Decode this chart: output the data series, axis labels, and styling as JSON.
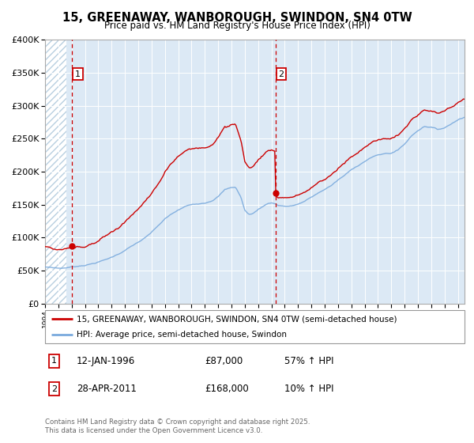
{
  "title": "15, GREENAWAY, WANBOROUGH, SWINDON, SN4 0TW",
  "subtitle": "Price paid vs. HM Land Registry's House Price Index (HPI)",
  "legend_line1": "15, GREENAWAY, WANBOROUGH, SWINDON, SN4 0TW (semi-detached house)",
  "legend_line2": "HPI: Average price, semi-detached house, Swindon",
  "footnote": "Contains HM Land Registry data © Crown copyright and database right 2025.\nThis data is licensed under the Open Government Licence v3.0.",
  "sale1_x": 1996.04,
  "sale1_y": 87000,
  "sale2_x": 2011.32,
  "sale2_y": 168000,
  "background_color": "#dce9f5",
  "red_line_color": "#cc0000",
  "blue_line_color": "#7aaadd",
  "dashed_line_color": "#cc0000",
  "grid_color": "#ffffff",
  "hatch_color": "#b8cfe0",
  "ylim_max": 400000,
  "xlim_min": 1994.0,
  "xlim_max": 2025.5,
  "yticks": [
    0,
    50000,
    100000,
    150000,
    200000,
    250000,
    300000,
    350000,
    400000
  ],
  "ytick_labels": [
    "£0",
    "£50K",
    "£100K",
    "£150K",
    "£200K",
    "£250K",
    "£300K",
    "£350K",
    "£400K"
  ]
}
